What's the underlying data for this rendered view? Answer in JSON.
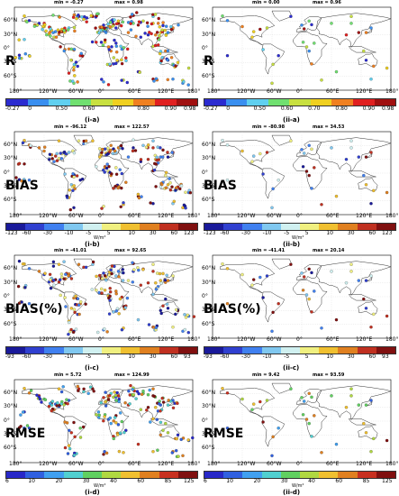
{
  "lat_labels": [
    "60°N",
    "30°N",
    "0°",
    "30°S",
    "60°S"
  ],
  "lon_labels": [
    "180°",
    "120°W",
    "60°W",
    "0°",
    "60°E",
    "120°E",
    "180°"
  ],
  "colors": {
    "r": [
      "#2b2bd0",
      "#3a8ff0",
      "#60d0f0",
      "#70e070",
      "#c8e040",
      "#f0d020",
      "#f08020",
      "#e02020",
      "#a01010"
    ],
    "bias": [
      "#1a1a9a",
      "#3040d0",
      "#4080f0",
      "#80c8f0",
      "#d0f0f0",
      "#f0f080",
      "#f0c030",
      "#e08020",
      "#c03020",
      "#801010"
    ],
    "rmse": [
      "#2828c8",
      "#3060e0",
      "#40a0f0",
      "#50d0d0",
      "#60d060",
      "#b0d840",
      "#f0c030",
      "#e08020",
      "#c83020",
      "#801010"
    ]
  },
  "rows": [
    {
      "title": "R",
      "left": {
        "min": "min = -0.27",
        "max": "max = 0.98",
        "label": "(i-a)"
      },
      "right": {
        "min": "min = 0.00",
        "max": "max = 0.96",
        "label": "(ii-a)"
      },
      "ticks": [
        "-0.27",
        "0",
        "0.50",
        "0.60",
        "0.70",
        "0.80",
        "0.90",
        "0.98"
      ],
      "unit": "",
      "palette": "r",
      "density": "high"
    },
    {
      "title": "BIAS",
      "left": {
        "min": "min = -96.12",
        "max": "max = 122.57",
        "label": "(i-b)"
      },
      "right": {
        "min": "min = -80.98",
        "max": "max = 34.53",
        "label": "(ii-b)"
      },
      "ticks": [
        "-123",
        "-60",
        "-30",
        "-10",
        "-5",
        "5",
        "10",
        "30",
        "60",
        "123"
      ],
      "unit": "W/m²",
      "palette": "bias",
      "density": "mid"
    },
    {
      "title": "BIAS(%)",
      "left": {
        "min": "min = -41.01",
        "max": "max = 92.65",
        "label": "(i-c)"
      },
      "right": {
        "min": "min = -41.41",
        "max": "max = 20.14",
        "label": "(ii-c)"
      },
      "ticks": [
        "-93",
        "-60",
        "-30",
        "-10",
        "-5",
        "5",
        "10",
        "30",
        "60",
        "93"
      ],
      "unit": "",
      "palette": "bias",
      "density": "mid"
    },
    {
      "title": "RMSE",
      "left": {
        "min": "min = 5.72",
        "max": "max = 124.99",
        "label": "(i-d)"
      },
      "right": {
        "min": "min = 9.42",
        "max": "max = 93.59",
        "label": "(ii-d)"
      },
      "ticks": [
        "6",
        "10",
        "20",
        "30",
        "40",
        "60",
        "85",
        "125"
      ],
      "unit": "W/m²",
      "palette": "rmse",
      "density": "mid"
    }
  ]
}
